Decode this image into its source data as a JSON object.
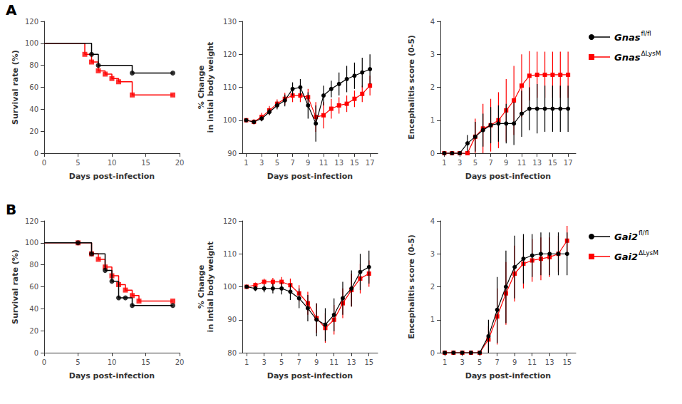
{
  "chart_data": [
    {
      "type": "step",
      "annotation": "A",
      "xlabel": "Days post-infection",
      "ylabel": "Survival rate (%)",
      "xlim": [
        0,
        20
      ],
      "ylim": [
        0,
        120
      ],
      "xticks": [
        0,
        5,
        10,
        15,
        20
      ],
      "yticks": [
        0,
        20,
        40,
        60,
        80,
        100,
        120
      ],
      "grid": false,
      "series": [
        {
          "color": "#000000",
          "marker": "circle",
          "x": [
            0,
            6,
            7,
            8,
            8,
            13,
            13,
            19
          ],
          "values": [
            100,
            100,
            90,
            83,
            80,
            80,
            73,
            73
          ],
          "marker_x": [
            7,
            8,
            13,
            19
          ],
          "marker_values": [
            90,
            80,
            73,
            73
          ]
        },
        {
          "color": "#ff0000",
          "marker": "square",
          "x": [
            0,
            6,
            7,
            8,
            9,
            10,
            11,
            13,
            13,
            19
          ],
          "values": [
            100,
            90,
            83,
            75,
            72,
            68,
            65,
            65,
            53,
            53
          ],
          "marker_x": [
            6,
            7,
            8,
            9,
            10,
            11,
            13,
            19
          ],
          "marker_values": [
            90,
            83,
            75,
            72,
            68,
            65,
            53,
            53
          ]
        }
      ]
    },
    {
      "type": "errorbar",
      "xlabel": "Days post-infection",
      "ylabel": "% Change\nin intial body weight",
      "xlim": [
        0.5,
        18
      ],
      "ylim": [
        90,
        130
      ],
      "xticks": [
        1,
        3,
        5,
        7,
        9,
        11,
        13,
        15,
        17
      ],
      "yticks": [
        90,
        100,
        110,
        120,
        130
      ],
      "grid": false,
      "x": [
        1,
        2,
        3,
        4,
        5,
        6,
        7,
        8,
        9,
        10,
        11,
        12,
        13,
        14,
        15,
        16,
        17
      ],
      "series": [
        {
          "color": "#000000",
          "marker": "circle",
          "values": [
            100.0,
            99.5,
            100.5,
            102.5,
            104.5,
            106.0,
            109.5,
            110.0,
            104.5,
            99.0,
            107.5,
            109.5,
            111.0,
            112.5,
            113.5,
            114.5,
            115.5
          ],
          "errors": [
            0.3,
            0.5,
            0.8,
            1.0,
            1.2,
            1.8,
            2.0,
            2.5,
            4.0,
            5.5,
            3.0,
            2.5,
            3.5,
            4.0,
            4.0,
            4.5,
            4.5
          ]
        },
        {
          "color": "#ff0000",
          "marker": "square",
          "values": [
            100.0,
            99.5,
            101.0,
            103.0,
            105.0,
            106.5,
            107.5,
            107.5,
            107.0,
            101.0,
            101.5,
            103.5,
            104.5,
            105.0,
            106.5,
            108.0,
            110.5
          ],
          "errors": [
            0.3,
            0.8,
            1.2,
            1.3,
            1.3,
            1.8,
            2.0,
            2.0,
            2.5,
            4.5,
            4.0,
            3.0,
            2.5,
            2.5,
            2.5,
            2.5,
            3.0
          ]
        }
      ]
    },
    {
      "type": "errorbar",
      "xlabel": "Days post-infection",
      "ylabel": "Encephalitis score (0-5)",
      "xlim": [
        0.5,
        18
      ],
      "ylim": [
        0,
        4
      ],
      "xticks": [
        1,
        3,
        5,
        7,
        9,
        11,
        13,
        15,
        17
      ],
      "yticks": [
        0,
        1,
        2,
        3,
        4
      ],
      "grid": false,
      "legend": "right",
      "x": [
        1,
        2,
        3,
        4,
        5,
        6,
        7,
        8,
        9,
        10,
        11,
        12,
        13,
        14,
        15,
        16,
        17
      ],
      "series": [
        {
          "name": "Gnas",
          "name_super": "fl/fl",
          "color": "#000000",
          "marker": "circle",
          "values": [
            0.0,
            0.0,
            0.0,
            0.3,
            0.5,
            0.7,
            0.85,
            0.9,
            0.9,
            0.9,
            1.2,
            1.35,
            1.35,
            1.35,
            1.35,
            1.35,
            1.35
          ],
          "errors": [
            0.0,
            0.0,
            0.0,
            0.25,
            0.45,
            0.5,
            0.55,
            0.55,
            0.6,
            0.65,
            0.7,
            0.65,
            0.75,
            0.7,
            0.7,
            0.7,
            0.7
          ]
        },
        {
          "name": "Gnas",
          "name_super": "ΔLysM",
          "color": "#ff0000",
          "marker": "square",
          "values": [
            0.0,
            0.0,
            0.0,
            0.0,
            0.5,
            0.75,
            0.85,
            1.0,
            1.3,
            1.6,
            2.05,
            2.35,
            2.38,
            2.38,
            2.38,
            2.38,
            2.38
          ],
          "errors": [
            0.0,
            0.0,
            0.0,
            0.0,
            0.55,
            0.75,
            0.8,
            0.85,
            0.95,
            1.05,
            0.95,
            0.75,
            0.7,
            0.7,
            0.7,
            0.7,
            0.7
          ]
        }
      ]
    },
    {
      "type": "step",
      "annotation": "B",
      "xlabel": "Days post-infection",
      "ylabel": "Survival rate (%)",
      "xlim": [
        0,
        20
      ],
      "ylim": [
        0,
        120
      ],
      "xticks": [
        0,
        5,
        10,
        15,
        20
      ],
      "yticks": [
        0,
        20,
        40,
        60,
        80,
        100,
        120
      ],
      "grid": false,
      "series": [
        {
          "color": "#000000",
          "marker": "circle",
          "x": [
            0,
            5,
            7,
            9,
            9,
            10,
            11,
            11,
            12,
            13,
            13,
            19
          ],
          "values": [
            100,
            100,
            90,
            83,
            75,
            65,
            55,
            50,
            50,
            50,
            43,
            43
          ],
          "marker_x": [
            5,
            7,
            9,
            10,
            11,
            12,
            13,
            19
          ],
          "marker_values": [
            100,
            90,
            75,
            65,
            50,
            50,
            43,
            43
          ]
        },
        {
          "color": "#ff0000",
          "marker": "square",
          "x": [
            0,
            5,
            7,
            8,
            9,
            10,
            11,
            12,
            13,
            14,
            14,
            19
          ],
          "values": [
            100,
            100,
            90,
            85,
            78,
            70,
            62,
            57,
            52,
            52,
            47,
            47
          ],
          "marker_x": [
            5,
            7,
            8,
            9,
            10,
            11,
            12,
            13,
            14,
            19
          ],
          "marker_values": [
            100,
            90,
            85,
            78,
            70,
            62,
            57,
            52,
            47,
            47
          ]
        }
      ]
    },
    {
      "type": "errorbar",
      "xlabel": "Days post-infection",
      "ylabel": "% Change\nin intial body weight",
      "xlim": [
        0.5,
        16
      ],
      "ylim": [
        80,
        120
      ],
      "xticks": [
        1,
        3,
        5,
        7,
        9,
        11,
        13,
        15
      ],
      "yticks": [
        80,
        90,
        100,
        110,
        120
      ],
      "grid": false,
      "x": [
        1,
        2,
        3,
        4,
        5,
        6,
        7,
        8,
        9,
        10,
        11,
        12,
        13,
        14,
        15
      ],
      "series": [
        {
          "color": "#000000",
          "marker": "circle",
          "values": [
            100.0,
            99.5,
            99.5,
            99.5,
            99.5,
            98.5,
            96.5,
            93.5,
            90.0,
            88.5,
            91.5,
            96.5,
            99.5,
            104.5,
            106.0
          ],
          "errors": [
            0.3,
            0.8,
            1.2,
            1.5,
            1.8,
            2.5,
            3.0,
            4.0,
            5.0,
            5.0,
            5.0,
            5.0,
            5.5,
            5.5,
            5.0
          ]
        },
        {
          "color": "#ff0000",
          "marker": "square",
          "values": [
            100.0,
            100.5,
            101.5,
            101.5,
            101.5,
            100.5,
            98.0,
            95.0,
            90.5,
            87.5,
            90.0,
            95.0,
            99.0,
            102.5,
            104.0
          ],
          "errors": [
            0.3,
            0.8,
            1.0,
            1.2,
            1.5,
            2.0,
            2.5,
            3.5,
            4.5,
            4.5,
            4.5,
            4.5,
            5.0,
            4.5,
            4.0
          ]
        }
      ]
    },
    {
      "type": "errorbar",
      "xlabel": "Days post-infection",
      "ylabel": "Encephalitis score (0-5)",
      "xlim": [
        0.5,
        16
      ],
      "ylim": [
        0,
        4
      ],
      "xticks": [
        1,
        3,
        5,
        7,
        9,
        11,
        13,
        15
      ],
      "yticks": [
        0,
        1,
        2,
        3,
        4
      ],
      "grid": false,
      "legend": "right",
      "x": [
        1,
        2,
        3,
        4,
        5,
        6,
        7,
        8,
        9,
        10,
        11,
        12,
        13,
        14,
        15
      ],
      "series": [
        {
          "name": "Gai2",
          "name_super": "fl/fl",
          "color": "#000000",
          "marker": "circle",
          "values": [
            0.0,
            0.0,
            0.0,
            0.0,
            0.0,
            0.5,
            1.3,
            2.0,
            2.6,
            2.85,
            2.95,
            3.0,
            3.0,
            3.0,
            3.0
          ],
          "errors": [
            0.0,
            0.0,
            0.0,
            0.0,
            0.0,
            0.5,
            1.0,
            1.1,
            0.95,
            0.75,
            0.65,
            0.65,
            0.65,
            0.65,
            0.65
          ]
        },
        {
          "name": "Gai2",
          "name_super": "ΔLysM",
          "color": "#ff0000",
          "marker": "square",
          "values": [
            0.0,
            0.0,
            0.0,
            0.0,
            0.0,
            0.4,
            1.1,
            1.8,
            2.4,
            2.7,
            2.8,
            2.85,
            2.9,
            3.0,
            3.4
          ],
          "errors": [
            0.0,
            0.0,
            0.0,
            0.0,
            0.0,
            0.4,
            0.85,
            0.95,
            0.85,
            0.75,
            0.65,
            0.65,
            0.6,
            0.55,
            0.45
          ]
        }
      ]
    }
  ]
}
